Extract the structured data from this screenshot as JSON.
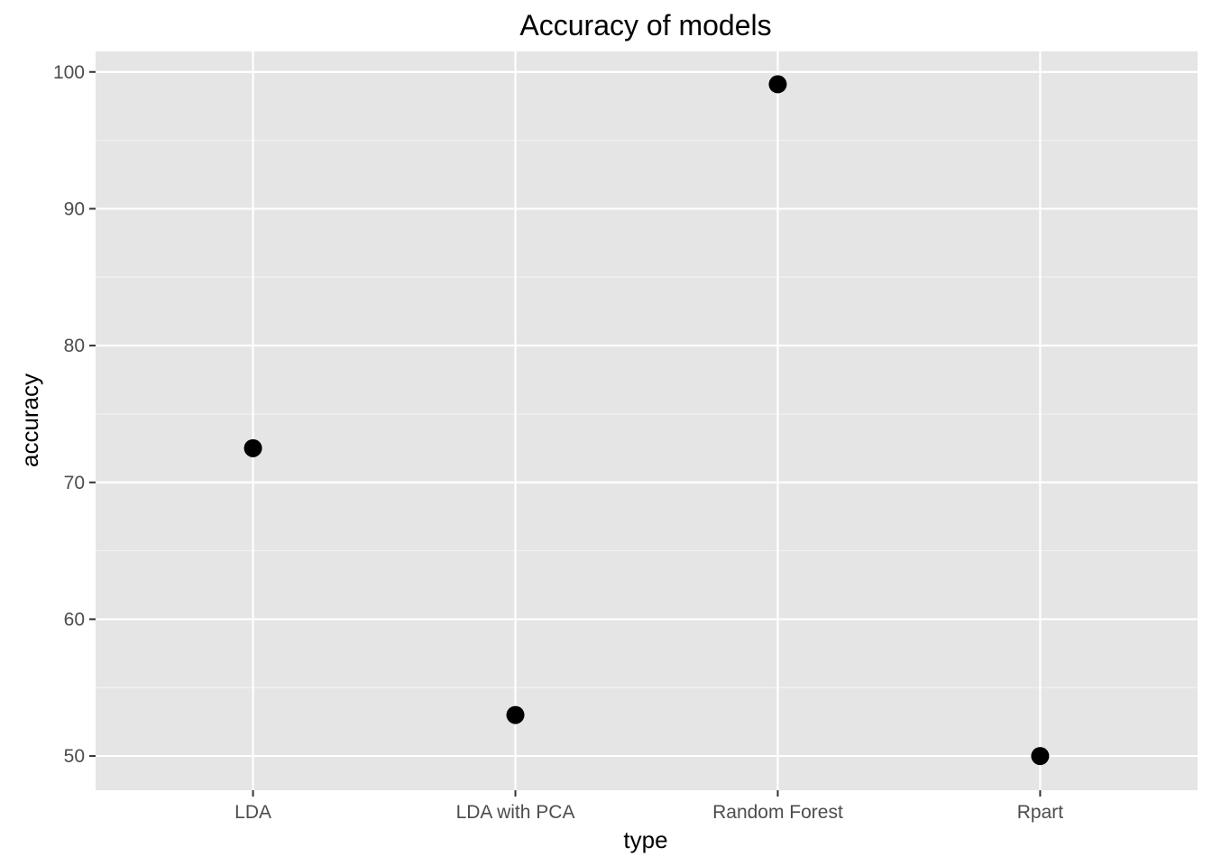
{
  "chart_data": {
    "type": "scatter",
    "title": "Accuracy of models",
    "xlabel": "type",
    "ylabel": "accuracy",
    "categories": [
      "LDA",
      "LDA with PCA",
      "Random Forest",
      "Rpart"
    ],
    "values": [
      72.5,
      53.0,
      99.1,
      50.0
    ],
    "ylim": [
      47.5,
      101.5
    ],
    "yticks": [
      50,
      60,
      70,
      80,
      90,
      100
    ],
    "grid": true,
    "legend": "none",
    "colors": {
      "panel_background": "#e5e5e5",
      "grid_major": "#ffffff",
      "grid_minor": "#f2f2f2",
      "point": "#000000",
      "tick_mark": "#333333"
    }
  }
}
